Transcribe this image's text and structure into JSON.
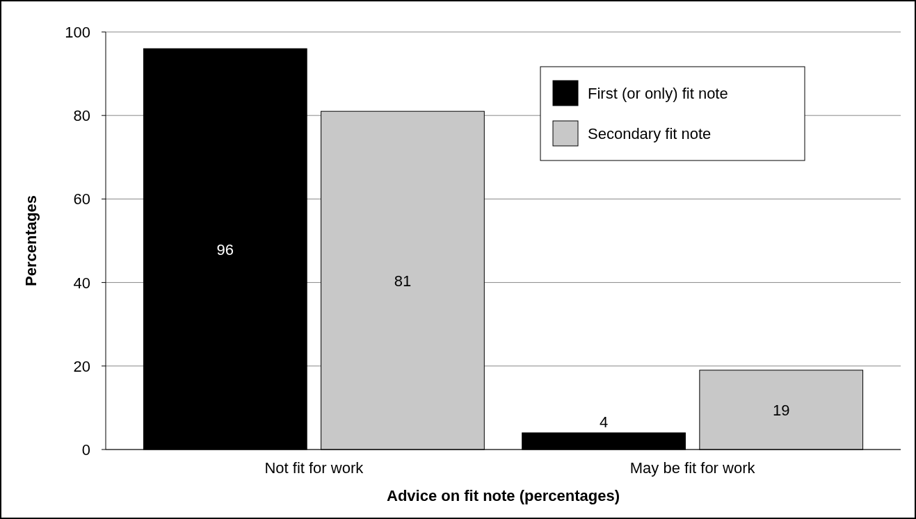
{
  "chart_data": {
    "type": "bar",
    "xlabel": "Advice on fit note (percentages)",
    "ylabel": "Percentages",
    "categories": [
      "Not fit for work",
      "May be fit for work"
    ],
    "series": [
      {
        "name": "First (or only) fit note",
        "color": "#000000",
        "values": [
          96,
          4
        ]
      },
      {
        "name": "Secondary fit note",
        "color": "#c8c8c8",
        "values": [
          81,
          19
        ]
      }
    ],
    "ylim": [
      0,
      100
    ],
    "yticks": [
      0,
      20,
      40,
      60,
      80,
      100
    ],
    "grid": "y",
    "legend": "top right",
    "data_labels": true
  }
}
